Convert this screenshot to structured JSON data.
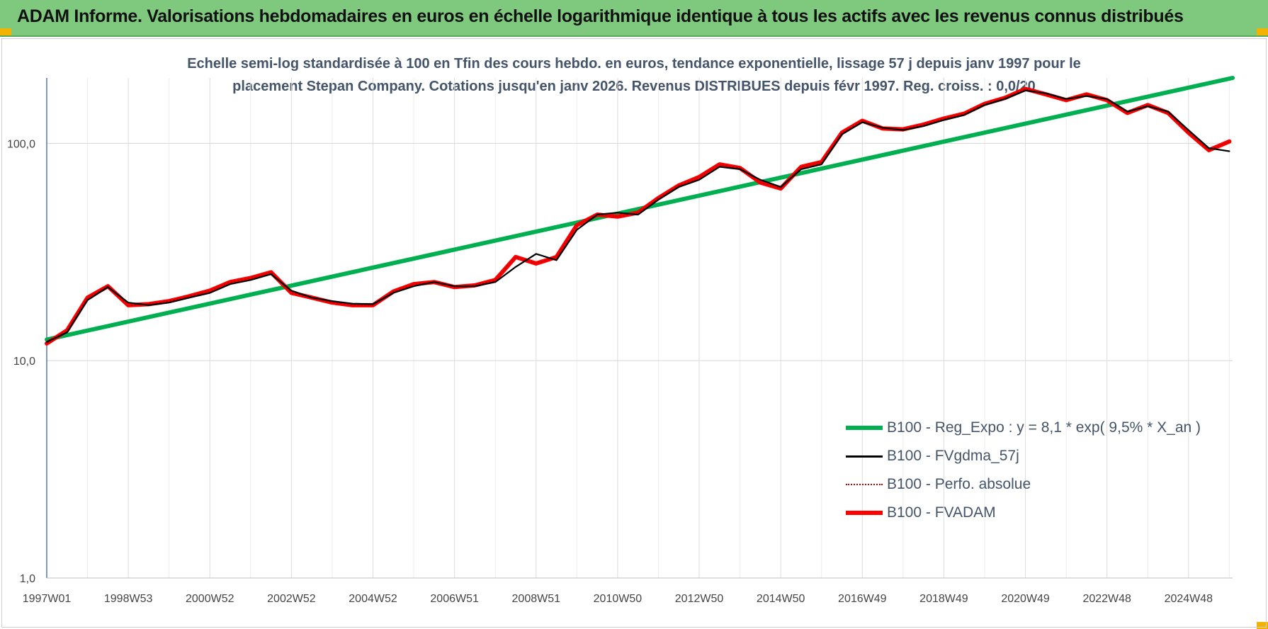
{
  "banner": {
    "title": "ADAM Informe. Valorisations hebdomadaires en euros en échelle logarithmique identique à tous les actifs avec les revenus connus distribués"
  },
  "colors": {
    "banner_bg": "#7fc97f",
    "regression": "#00b050",
    "fvgdma": "#000000",
    "perfo": "#c00000",
    "fvadam": "#ff0000",
    "title_text": "#44546a"
  },
  "chart_data": {
    "type": "line",
    "title_line1": "Echelle semi-log standardisée à 100 en Tfin des cours hebdo. en euros, tendance exponentielle, lissage 57 j depuis janv 1997 pour le",
    "title_line2": "placement Stepan Company. Cotations jusqu'en janv 2026. Revenus DISTRIBUES depuis févr 1997. Reg. croiss. : 0,0/20",
    "y_scale": "log",
    "ylim": [
      1,
      200
    ],
    "y_ticks": [
      "1,0",
      "10,0",
      "100,0"
    ],
    "xlim": [
      1997.0,
      2026.08
    ],
    "x_ticks": [
      {
        "label": "1997W01",
        "x": 1997.0
      },
      {
        "label": "1998W53",
        "x": 1999.0
      },
      {
        "label": "2000W52",
        "x": 2001.0
      },
      {
        "label": "2002W52",
        "x": 2003.0
      },
      {
        "label": "2004W52",
        "x": 2005.0
      },
      {
        "label": "2006W51",
        "x": 2007.0
      },
      {
        "label": "2008W51",
        "x": 2009.0
      },
      {
        "label": "2010W50",
        "x": 2011.0
      },
      {
        "label": "2012W50",
        "x": 2013.0
      },
      {
        "label": "2014W50",
        "x": 2015.0
      },
      {
        "label": "2016W49",
        "x": 2017.0
      },
      {
        "label": "2018W49",
        "x": 2019.0
      },
      {
        "label": "2020W49",
        "x": 2021.0
      },
      {
        "label": "2022W48",
        "x": 2023.0
      },
      {
        "label": "2024W48",
        "x": 2025.0
      }
    ],
    "grid": true,
    "legend_position": "bottom-right",
    "series": [
      {
        "name": "B100 - Reg_Expo : y = 8,1 * exp( 9,5% *  X_an )",
        "color": "#00b050",
        "style": "thick",
        "x": [
          1997.0,
          2026.08
        ],
        "y": [
          12.5,
          200
        ]
      },
      {
        "name": "B100 - FVgdma_57j",
        "color": "#000000",
        "style": "thin",
        "x": [
          1997.0,
          1997.5,
          1998.0,
          1998.5,
          1999.0,
          1999.5,
          2000.0,
          2000.5,
          2001.0,
          2001.5,
          2002.0,
          2002.5,
          2003.0,
          2003.5,
          2004.0,
          2004.5,
          2005.0,
          2005.5,
          2006.0,
          2006.5,
          2007.0,
          2007.5,
          2008.0,
          2008.5,
          2009.0,
          2009.5,
          2010.0,
          2010.5,
          2011.0,
          2011.5,
          2012.0,
          2012.5,
          2013.0,
          2013.5,
          2014.0,
          2014.5,
          2015.0,
          2015.5,
          2016.0,
          2016.5,
          2017.0,
          2017.5,
          2018.0,
          2018.5,
          2019.0,
          2019.5,
          2020.0,
          2020.5,
          2021.0,
          2021.5,
          2022.0,
          2022.5,
          2023.0,
          2023.5,
          2024.0,
          2024.5,
          2025.0,
          2025.5,
          2026.0
        ],
        "y": [
          12.2,
          13.5,
          19,
          21.8,
          18.5,
          18,
          18.5,
          19.5,
          20.5,
          22.5,
          23.5,
          25,
          21,
          19.5,
          18.8,
          18.3,
          18.2,
          20.5,
          22,
          23,
          22,
          22,
          23,
          27,
          31,
          29,
          40,
          47,
          48,
          47,
          55,
          63,
          68,
          78,
          76,
          68,
          63,
          76,
          80,
          110,
          125,
          118,
          115,
          120,
          128,
          135,
          150,
          160,
          175,
          170,
          160,
          165,
          160,
          140,
          148,
          140,
          115,
          95,
          92
        ]
      },
      {
        "name": "B100 - Perfo. absolue",
        "color": "#c00000",
        "style": "dotted",
        "x": [
          1997.0,
          1997.5,
          1998.0,
          1998.5,
          1999.0,
          1999.5,
          2000.0,
          2000.5,
          2001.0,
          2001.5,
          2002.0,
          2002.5,
          2003.0,
          2003.5,
          2004.0,
          2004.5,
          2005.0,
          2005.5,
          2006.0,
          2006.5,
          2007.0,
          2007.5,
          2008.0,
          2008.5,
          2009.0,
          2009.5,
          2010.0,
          2010.5,
          2011.0,
          2011.5,
          2012.0,
          2012.5,
          2013.0,
          2013.5,
          2014.0,
          2014.5,
          2015.0,
          2015.5,
          2016.0,
          2016.5,
          2017.0,
          2017.5,
          2018.0,
          2018.5,
          2019.0,
          2019.5,
          2020.0,
          2020.5,
          2021.0,
          2021.5,
          2022.0,
          2022.5,
          2023.0,
          2023.5,
          2024.0,
          2024.5,
          2025.0,
          2025.5,
          2026.0
        ],
        "y": [
          12,
          13.8,
          19.5,
          22,
          18,
          18.2,
          18.8,
          19.8,
          21,
          23,
          24,
          25.5,
          20.5,
          19.5,
          18.5,
          18,
          18,
          20.8,
          22.5,
          23,
          21.8,
          22.2,
          23.5,
          30,
          28,
          30,
          42,
          47,
          46,
          48,
          56,
          64,
          70,
          80,
          77,
          66,
          62,
          78,
          82,
          112,
          127,
          117,
          116,
          122,
          130,
          137,
          152,
          162,
          178,
          168,
          158,
          168,
          158,
          138,
          150,
          138,
          112,
          93,
          102
        ]
      },
      {
        "name": "B100 - FVADAM",
        "color": "#ff0000",
        "style": "thick",
        "x": [
          1997.0,
          1997.5,
          1998.0,
          1998.5,
          1999.0,
          1999.5,
          2000.0,
          2000.5,
          2001.0,
          2001.5,
          2002.0,
          2002.5,
          2003.0,
          2003.5,
          2004.0,
          2004.5,
          2005.0,
          2005.5,
          2006.0,
          2006.5,
          2007.0,
          2007.5,
          2008.0,
          2008.5,
          2009.0,
          2009.5,
          2010.0,
          2010.5,
          2011.0,
          2011.5,
          2012.0,
          2012.5,
          2013.0,
          2013.5,
          2014.0,
          2014.5,
          2015.0,
          2015.5,
          2016.0,
          2016.5,
          2017.0,
          2017.5,
          2018.0,
          2018.5,
          2019.0,
          2019.5,
          2020.0,
          2020.5,
          2021.0,
          2021.5,
          2022.0,
          2022.5,
          2023.0,
          2023.5,
          2024.0,
          2024.5,
          2025.0,
          2025.5,
          2026.0
        ],
        "y": [
          12,
          13.8,
          19.5,
          22,
          18,
          18.2,
          18.8,
          19.8,
          21,
          23,
          24,
          25.5,
          20.5,
          19.5,
          18.5,
          18,
          18,
          20.8,
          22.5,
          23,
          21.8,
          22.2,
          23.5,
          30,
          28,
          30,
          42,
          47,
          46,
          48,
          56,
          64,
          70,
          80,
          77,
          66,
          62,
          78,
          82,
          112,
          127,
          117,
          116,
          122,
          130,
          137,
          152,
          162,
          178,
          168,
          158,
          168,
          158,
          138,
          150,
          138,
          112,
          93,
          102
        ]
      }
    ]
  }
}
